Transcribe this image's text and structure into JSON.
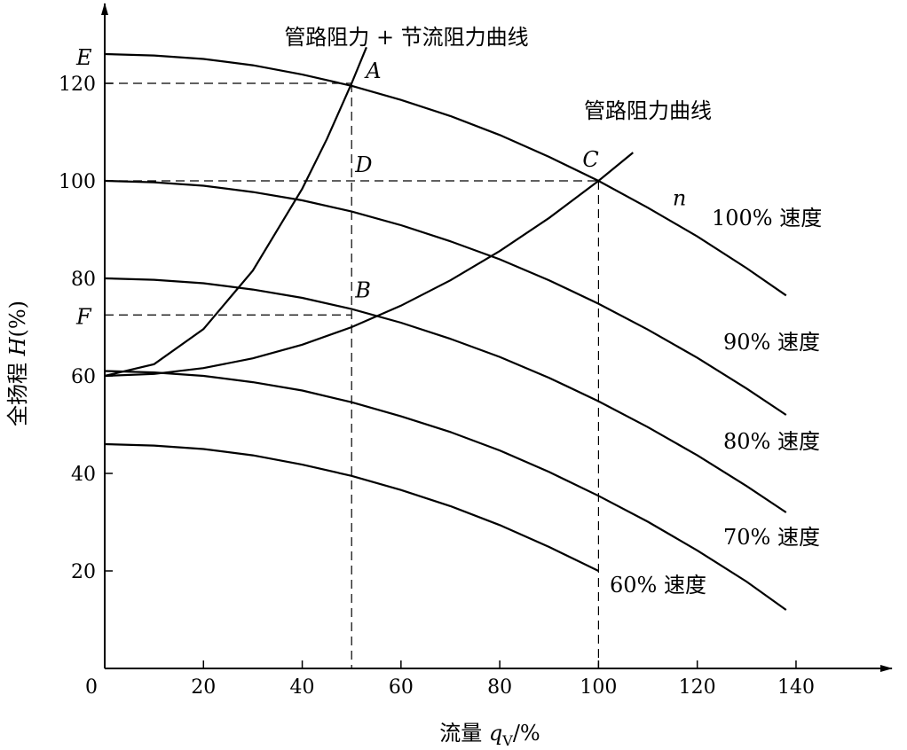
{
  "chart_data": {
    "type": "line",
    "title": "",
    "xlabel": "流量 q_V/%",
    "xlabel_main": "流量 ",
    "xlabel_var": "q",
    "xlabel_sub": "V",
    "xlabel_unit": "/%",
    "ylabel": "全扬程 H(%)",
    "ylabel_main": "全扬程 ",
    "ylabel_var": "H",
    "ylabel_unit": "(%)",
    "xlim": [
      0,
      160
    ],
    "ylim": [
      0,
      135
    ],
    "x_ticks": [
      0,
      20,
      40,
      60,
      80,
      100,
      120,
      140
    ],
    "y_ticks": [
      20,
      40,
      60,
      80,
      100,
      120
    ],
    "grid": false,
    "series": [
      {
        "name": "100% 速度",
        "x": [
          0,
          10,
          20,
          30,
          40,
          50,
          60,
          70,
          80,
          90,
          100,
          110,
          120,
          130,
          138
        ],
        "y": [
          126,
          125.7,
          125,
          123.7,
          121.8,
          119.5,
          116.6,
          113.3,
          109.4,
          104.9,
          100,
          94.5,
          88.6,
          82.1,
          76.5
        ]
      },
      {
        "name": "90% 速度",
        "x": [
          0,
          10,
          20,
          30,
          40,
          50,
          60,
          70,
          80,
          90,
          100,
          110,
          120,
          130,
          138
        ],
        "y": [
          100,
          99.7,
          99,
          97.7,
          96,
          93.7,
          90.9,
          87.6,
          83.9,
          79.6,
          74.8,
          69.5,
          63.7,
          57.4,
          52
        ]
      },
      {
        "name": "80% 速度",
        "x": [
          0,
          10,
          20,
          30,
          40,
          50,
          60,
          70,
          80,
          90,
          100,
          110,
          120,
          130,
          138
        ],
        "y": [
          80,
          79.7,
          79,
          77.7,
          76,
          73.7,
          70.9,
          67.6,
          63.9,
          59.6,
          54.8,
          49.5,
          43.7,
          37.4,
          32
        ]
      },
      {
        "name": "70% 速度",
        "x": [
          0,
          10,
          20,
          30,
          40,
          50,
          60,
          70,
          80,
          90,
          100,
          110,
          120,
          130,
          138
        ],
        "y": [
          61,
          60.7,
          60,
          58.7,
          57,
          54.6,
          51.7,
          48.5,
          44.7,
          40.3,
          35.4,
          30.1,
          24.2,
          17.8,
          12
        ]
      },
      {
        "name": "60% 速度",
        "x": [
          0,
          10,
          20,
          30,
          40,
          50,
          60,
          70,
          80,
          90,
          100
        ],
        "y": [
          46,
          45.7,
          45,
          43.7,
          41.8,
          39.5,
          36.6,
          33.3,
          29.4,
          24.9,
          20
        ]
      },
      {
        "name": "管路阻力曲线",
        "x": [
          0,
          10,
          20,
          30,
          40,
          50,
          60,
          70,
          80,
          90,
          100,
          107
        ],
        "y": [
          60,
          60.4,
          61.6,
          63.6,
          66.4,
          70,
          74.4,
          79.6,
          85.6,
          92.4,
          100,
          105.8
        ]
      },
      {
        "name": "管路阻力 + 节流阻力曲线",
        "x": [
          0,
          10,
          20,
          30,
          40,
          45,
          50,
          53
        ],
        "y": [
          60,
          62.4,
          69.6,
          81.6,
          98.4,
          108.6,
          120,
          127.4
        ]
      }
    ],
    "series_labels": [
      "100% 速度",
      "90% 速度",
      "80% 速度",
      "70% 速度",
      "60% 速度"
    ],
    "curve_titles": {
      "pipe": "管路阻力曲线",
      "pipe_throttle": "管路阻力 + 节流阻力曲线"
    },
    "points": [
      {
        "label": "E",
        "x": 0,
        "y": 126
      },
      {
        "label": "A",
        "x": 50,
        "y": 120
      },
      {
        "label": "D",
        "x": 50,
        "y": 100
      },
      {
        "label": "C",
        "x": 100,
        "y": 100
      },
      {
        "label": "B",
        "x": 50,
        "y": 72.5
      },
      {
        "label": "F",
        "x": 0,
        "y": 72.5
      },
      {
        "label": "n",
        "x": 115,
        "y": 95
      }
    ],
    "origin_label": "0"
  }
}
